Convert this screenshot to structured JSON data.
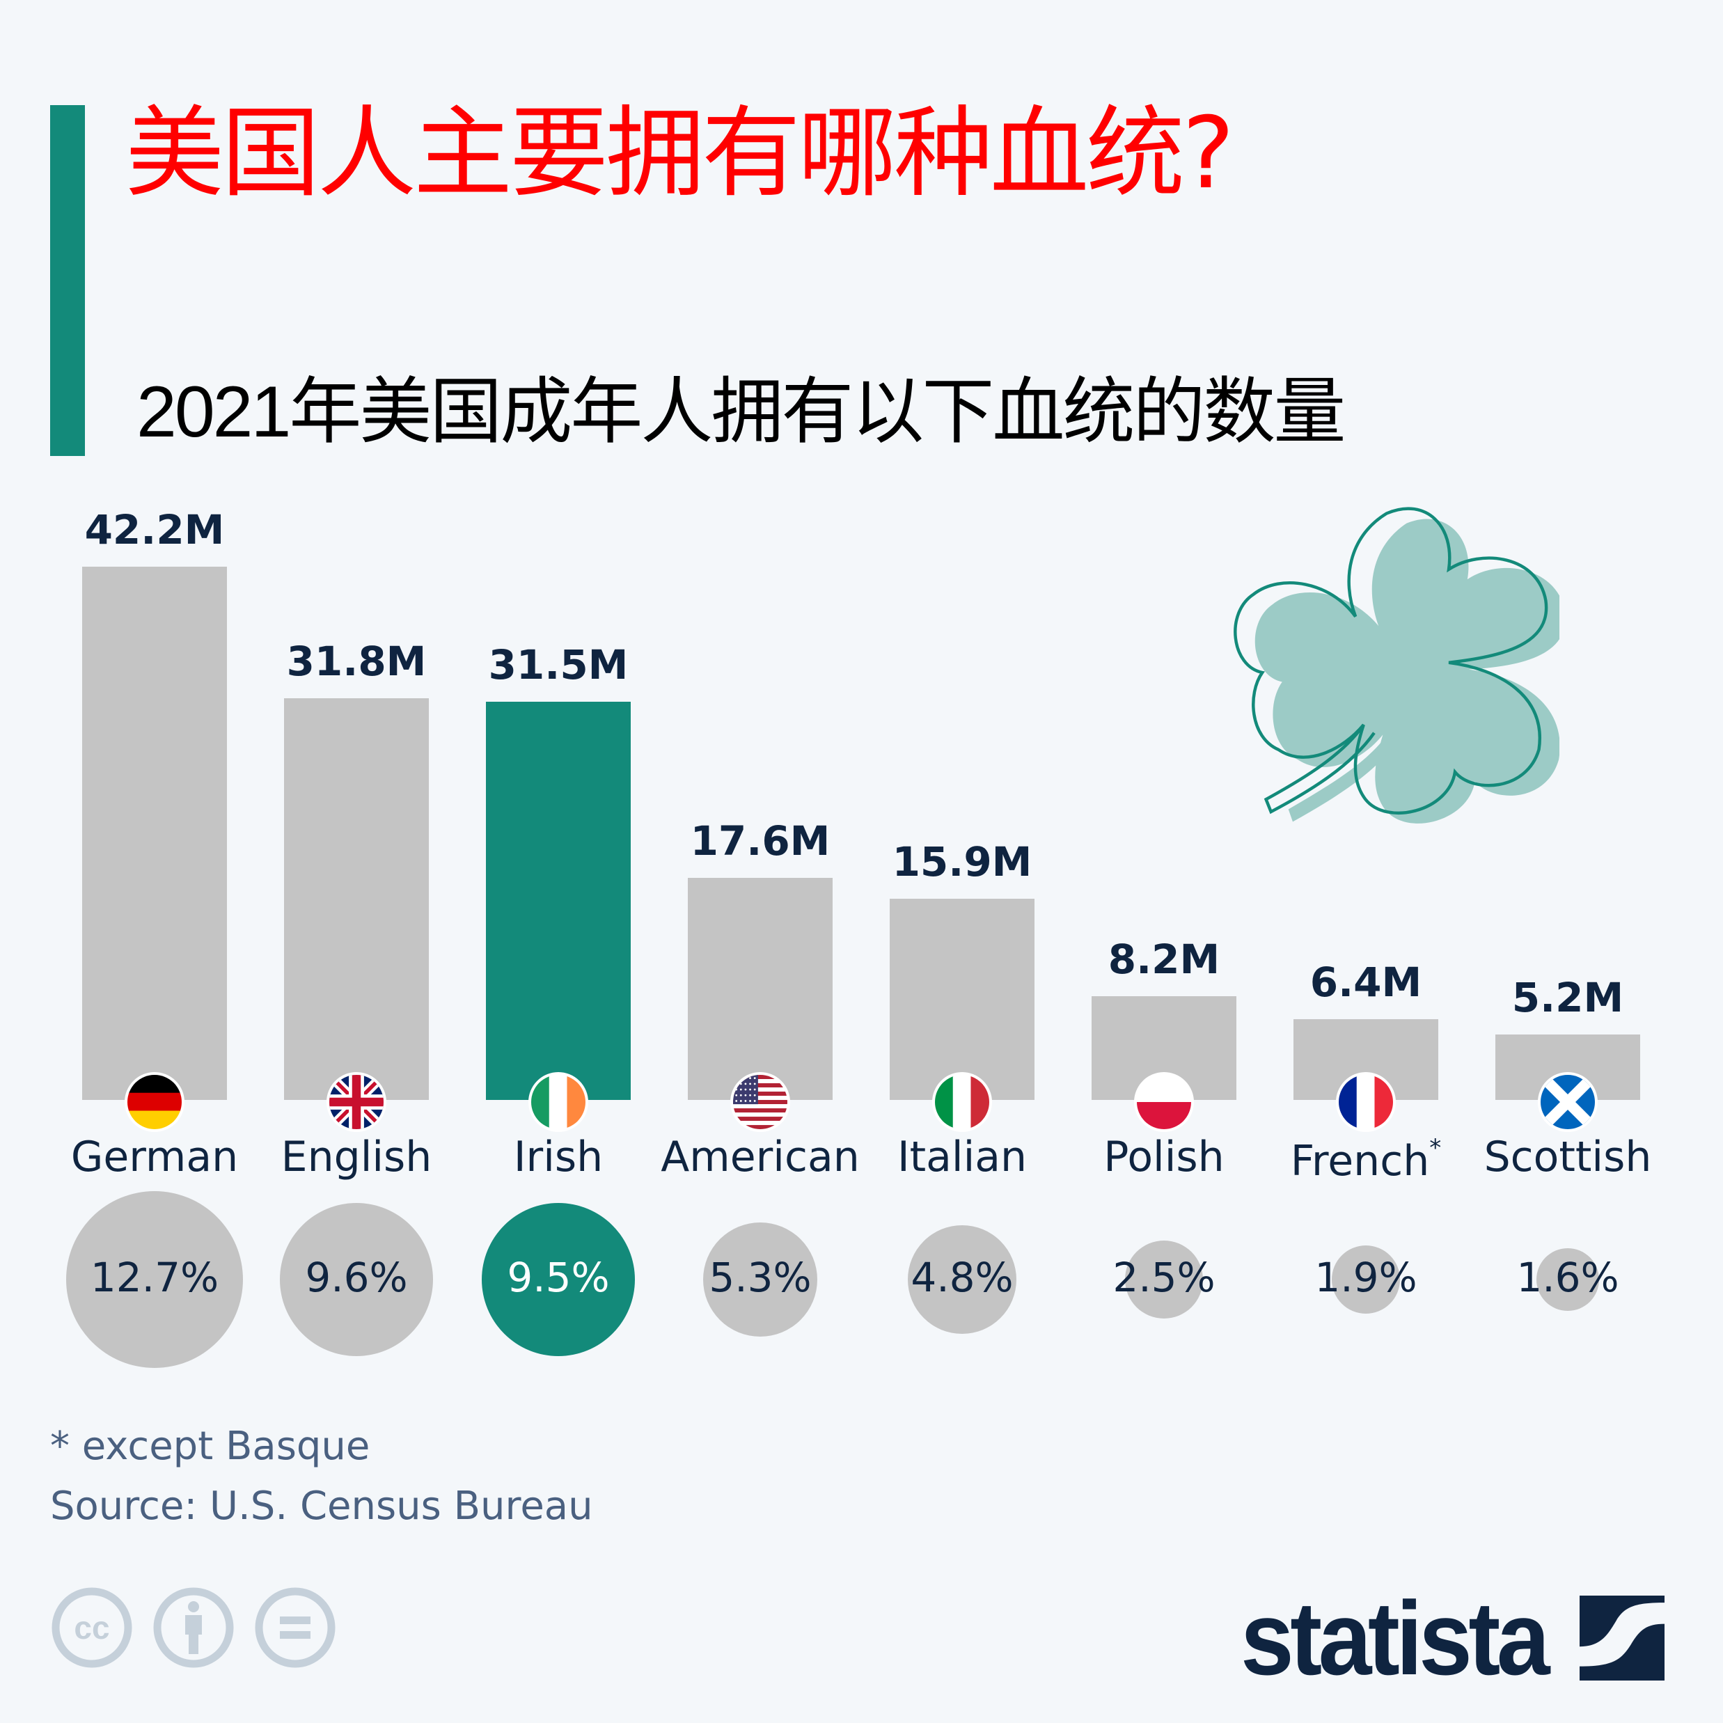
{
  "header": {
    "title": "美国人主要拥有哪种血统?",
    "subtitle": "2021年美国成年人拥有以下血统的数量",
    "title_color": "#ff0000",
    "accent_color": "#138a7a"
  },
  "colors": {
    "bar_default": "#c4c4c4",
    "bar_highlight": "#138a7a",
    "label_text": "#0f2440",
    "footer_text": "#4a6080",
    "shamrock_fill": "#9ccbc6",
    "shamrock_stroke": "#138a7a",
    "cc_icon": "#c5d0da"
  },
  "chart_data": {
    "type": "bar",
    "title": "美国人主要拥有哪种血统?",
    "subtitle": "2021年美国成年人拥有以下血统的数量",
    "categories": [
      "German",
      "English",
      "Irish",
      "American",
      "Italian",
      "Polish",
      "French*",
      "Scottish"
    ],
    "series": [
      {
        "name": "Population with ancestry (millions)",
        "values": [
          42.2,
          31.8,
          31.5,
          17.6,
          15.9,
          8.2,
          6.4,
          5.2
        ],
        "unit": "M"
      },
      {
        "name": "Share of population (%)",
        "values": [
          12.7,
          9.6,
          9.5,
          5.3,
          4.8,
          2.5,
          1.9,
          1.6
        ],
        "unit": "%"
      }
    ],
    "highlighted_category": "Irish",
    "xlabel": "",
    "ylabel": "",
    "grid": false,
    "legend": "none",
    "footnote": "* except Basque",
    "source": "Source: U.S. Census Bureau"
  },
  "bars": [
    {
      "category": "German",
      "value_label": "42.2M",
      "value": 42.2,
      "pct_label": "12.7%",
      "pct": 12.7,
      "flag": "germany-flag",
      "highlight": false
    },
    {
      "category": "English",
      "value_label": "31.8M",
      "value": 31.8,
      "pct_label": "9.6%",
      "pct": 9.6,
      "flag": "uk-flag",
      "highlight": false
    },
    {
      "category": "Irish",
      "value_label": "31.5M",
      "value": 31.5,
      "pct_label": "9.5%",
      "pct": 9.5,
      "flag": "ireland-flag",
      "highlight": true
    },
    {
      "category": "American",
      "value_label": "17.6M",
      "value": 17.6,
      "pct_label": "5.3%",
      "pct": 5.3,
      "flag": "usa-flag",
      "highlight": false
    },
    {
      "category": "Italian",
      "value_label": "15.9M",
      "value": 15.9,
      "pct_label": "4.8%",
      "pct": 4.8,
      "flag": "italy-flag",
      "highlight": false
    },
    {
      "category": "Polish",
      "value_label": "8.2M",
      "value": 8.2,
      "pct_label": "2.5%",
      "pct": 2.5,
      "flag": "poland-flag",
      "highlight": false
    },
    {
      "category": "French*",
      "value_label": "6.4M",
      "value": 6.4,
      "pct_label": "1.9%",
      "pct": 1.9,
      "flag": "france-flag",
      "highlight": false
    },
    {
      "category": "Scottish",
      "value_label": "5.2M",
      "value": 5.2,
      "pct_label": "1.6%",
      "pct": 1.6,
      "flag": "scotland-flag",
      "highlight": false
    }
  ],
  "footer": {
    "footnote": "* except Basque",
    "source": "Source: U.S. Census Bureau",
    "license_icons": [
      "cc-icon",
      "attribution-icon",
      "no-derivatives-icon"
    ],
    "logo_text": "statista"
  },
  "decoration": {
    "icon": "shamrock-icon"
  }
}
